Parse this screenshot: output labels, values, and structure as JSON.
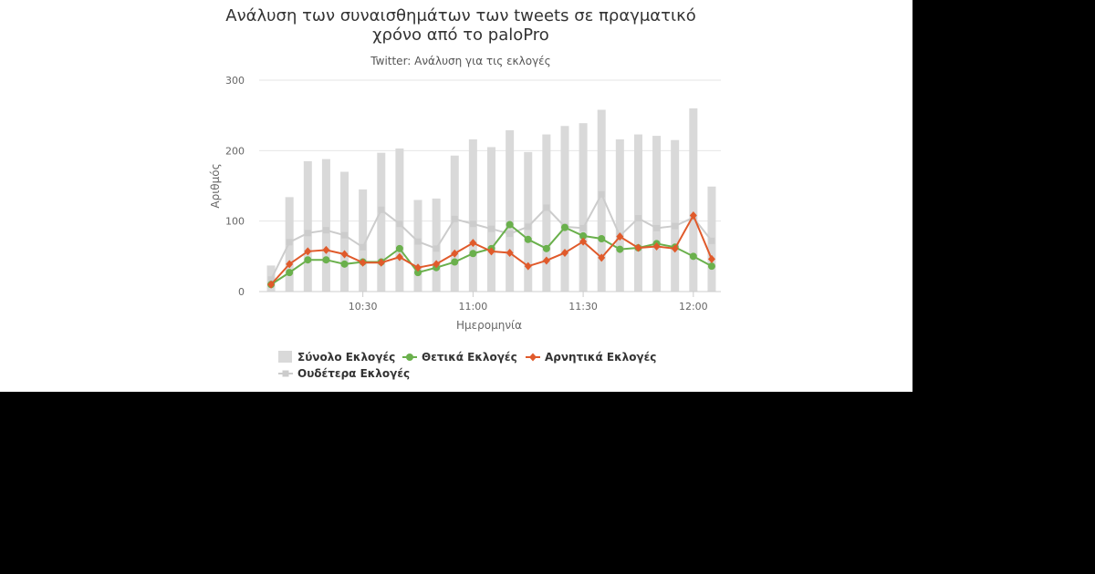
{
  "chart_data": {
    "type": "bar",
    "title_lines": [
      "Ανάλυση των συναισθημάτων των tweets σε πραγματικό",
      "χρόνο από το paloPro"
    ],
    "subtitle": "Twitter: Ανάλυση για τις εκλογές",
    "xlabel": "Ημερομηνία",
    "ylabel": "Αριθμός",
    "ylim": [
      0,
      300
    ],
    "yticks": [
      0,
      100,
      200,
      300
    ],
    "x_tick_labels": [
      "10:30",
      "11:00",
      "11:30",
      "12:00"
    ],
    "x_tick_positions": [
      5.5,
      11.5,
      17.5,
      23.5
    ],
    "n_points": 25,
    "grid": true,
    "legend_position": "bottom-left",
    "series": [
      {
        "name": "Σύνολο Εκλογές",
        "kind": "bar",
        "color": "#d9d9d9",
        "values": [
          37,
          134,
          185,
          188,
          170,
          145,
          197,
          203,
          130,
          132,
          193,
          216,
          205,
          229,
          198,
          223,
          235,
          239,
          258,
          216,
          223,
          221,
          215,
          260,
          149
        ]
      },
      {
        "name": "Θετικά Εκλογές",
        "kind": "line",
        "color": "#6ab04c",
        "marker": "circle",
        "values": [
          10,
          27,
          45,
          45,
          39,
          42,
          42,
          61,
          27,
          34,
          42,
          54,
          61,
          95,
          74,
          61,
          91,
          79,
          75,
          60,
          62,
          68,
          63,
          50,
          36
        ]
      },
      {
        "name": "Αρνητικά Εκλογές",
        "kind": "line",
        "color": "#e05a2b",
        "marker": "diamond",
        "values": [
          10,
          39,
          57,
          59,
          53,
          41,
          41,
          49,
          34,
          39,
          54,
          69,
          57,
          55,
          36,
          44,
          55,
          71,
          48,
          78,
          62,
          64,
          61,
          108,
          46
        ]
      },
      {
        "name": "Ουδέτερα Εκλογές",
        "kind": "line",
        "color": "#cccccc",
        "marker": "square",
        "values": [
          17,
          70,
          83,
          87,
          80,
          63,
          116,
          96,
          71,
          61,
          103,
          96,
          89,
          82,
          92,
          119,
          92,
          90,
          138,
          79,
          104,
          90,
          93,
          105,
          72
        ]
      }
    ]
  }
}
